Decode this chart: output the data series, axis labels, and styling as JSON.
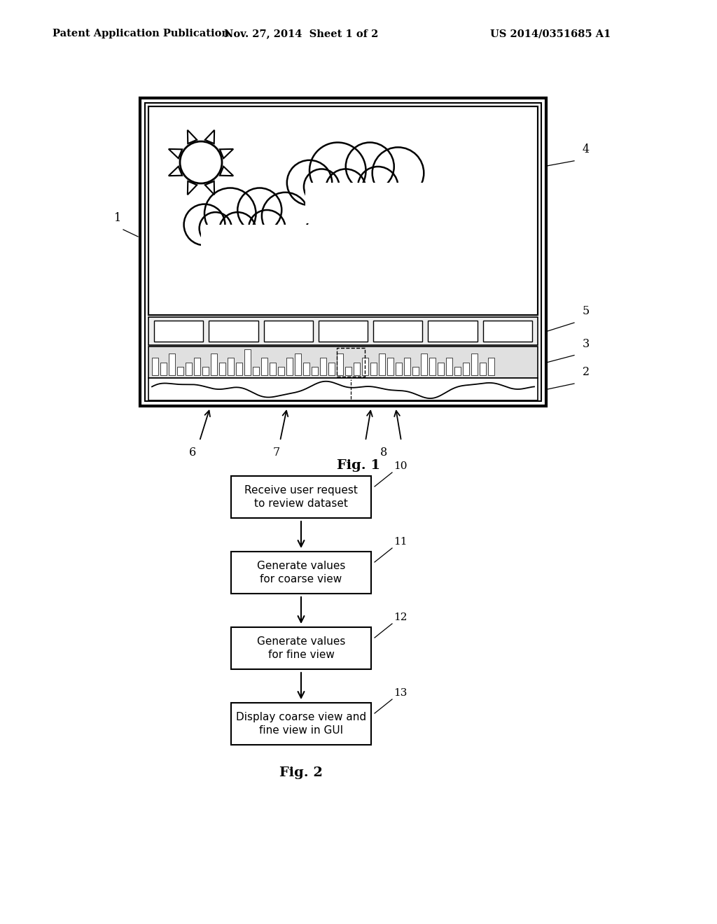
{
  "background_color": "#ffffff",
  "header_left": "Patent Application Publication",
  "header_mid": "Nov. 27, 2014  Sheet 1 of 2",
  "header_right": "US 2014/0351685 A1",
  "fig1_label": "Fig. 1",
  "fig2_label": "Fig. 2",
  "flow_boxes": [
    {
      "label": "Receive user request\nto review dataset",
      "ref": "10"
    },
    {
      "label": "Generate values\nfor coarse view",
      "ref": "11"
    },
    {
      "label": "Generate values\nfor fine view",
      "ref": "12"
    },
    {
      "label": "Display coarse view and\nfine view in GUI",
      "ref": "13"
    }
  ],
  "label1": "1",
  "label2": "2",
  "label3": "3",
  "label4": "4",
  "label5": "5",
  "label6": "6",
  "label7": "7",
  "label8": "8"
}
